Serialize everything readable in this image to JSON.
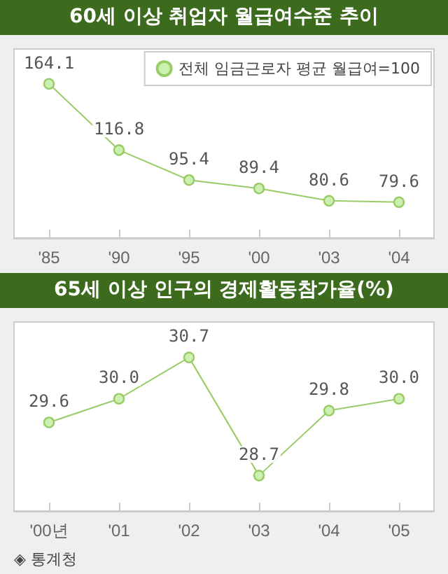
{
  "chart_data": [
    {
      "type": "line",
      "title": "60세 이상 취업자 월급여수준 추이",
      "categories": [
        "'85",
        "'90",
        "'95",
        "'00",
        "'03",
        "'04"
      ],
      "series": [
        {
          "name": "전체 임금근로자 평균 월급여=100",
          "color": "#99cc66",
          "values": [
            164.1,
            116.8,
            95.4,
            89.4,
            80.6,
            79.6
          ]
        }
      ],
      "ylim": [
        54,
        189
      ],
      "data_labels": true,
      "legend": "top right",
      "marker": "circle",
      "line_style": "solid"
    },
    {
      "type": "line",
      "title": "65세 이상 인구의 경제활동참가율(%)",
      "categories": [
        "'00년",
        "'01",
        "'02",
        "'03",
        "'04",
        "'05"
      ],
      "series": [
        {
          "color": "#99cc66",
          "values": [
            29.6,
            30.0,
            30.7,
            28.7,
            29.8,
            30.0
          ],
          "value_labels": [
            "29.6",
            "30.0",
            "30.7",
            "28.7",
            "29.8",
            "30.0"
          ]
        }
      ],
      "ylim": [
        28.1,
        31.3
      ],
      "marker": "circle",
      "line_style": "solid",
      "annotations": [
        "◈ 통계청"
      ]
    }
  ]
}
